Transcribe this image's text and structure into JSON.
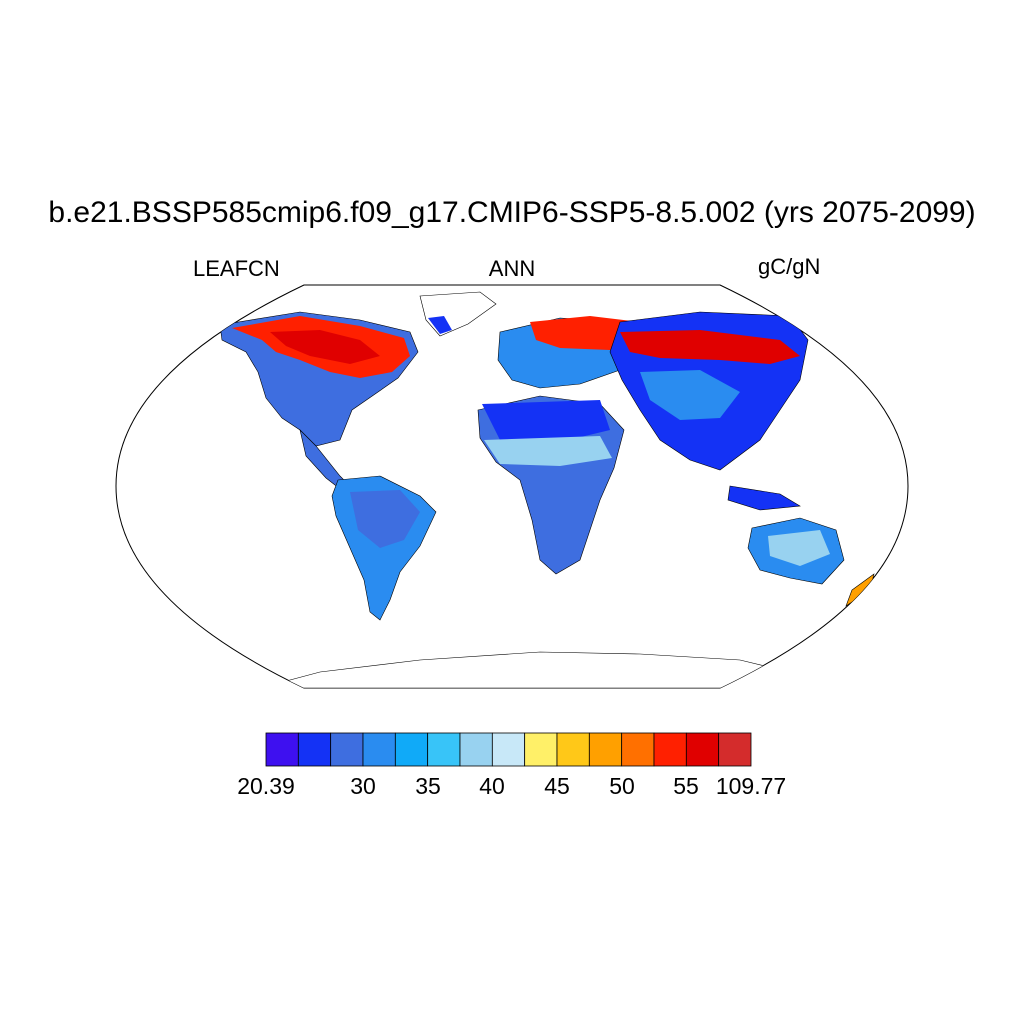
{
  "title": "b.e21.BSSP585cmip6.f09_g17.CMIP6-SSP5-8.5.002 (yrs 2075-2099)",
  "variable": "LEAFCN",
  "season": "ANN",
  "units": "gC/gN",
  "colorbar": {
    "colors": [
      "#3e10f0",
      "#1432f5",
      "#3e6ee0",
      "#2a8cf0",
      "#10aaf8",
      "#38c4f8",
      "#98d2f0",
      "#c8e8f8",
      "#fff068",
      "#ffc818",
      "#ffa000",
      "#ff7000",
      "#ff2000",
      "#e00000",
      "#d42c2c"
    ],
    "tick_labels": [
      "20.39",
      "30",
      "35",
      "40",
      "45",
      "50",
      "55",
      "109.77"
    ]
  },
  "map": {
    "projection": "Robinson",
    "background": "#ffffff",
    "outline_color": "#000000"
  }
}
